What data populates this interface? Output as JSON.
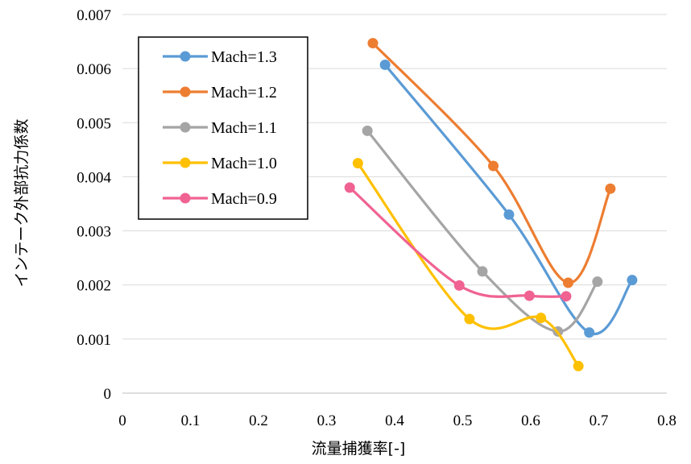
{
  "chart_data": {
    "type": "line",
    "xlabel": "流量捕獲率[-]",
    "ylabel": "インテーク外部抗力係数",
    "xlim": [
      0,
      0.8
    ],
    "ylim": [
      0,
      0.007
    ],
    "x_ticks": [
      "0",
      "0.1",
      "0.2",
      "0.3",
      "0.4",
      "0.5",
      "0.6",
      "0.7",
      "0.8"
    ],
    "y_ticks": [
      "0",
      "0.001",
      "0.002",
      "0.003",
      "0.004",
      "0.005",
      "0.006",
      "0.007"
    ],
    "grid": "horizontal",
    "legend_position": "top-left",
    "series": [
      {
        "name": "Mach=1.3",
        "color": "#5B9BD5",
        "points": [
          [
            0.386,
            0.00607
          ],
          [
            0.568,
            0.0033
          ],
          [
            0.686,
            0.00112
          ],
          [
            0.749,
            0.00209
          ]
        ]
      },
      {
        "name": "Mach=1.2",
        "color": "#ED7D31",
        "points": [
          [
            0.368,
            0.00647
          ],
          [
            0.545,
            0.0042
          ],
          [
            0.655,
            0.00204
          ],
          [
            0.717,
            0.00378
          ]
        ]
      },
      {
        "name": "Mach=1.1",
        "color": "#A5A5A5",
        "points": [
          [
            0.36,
            0.00485
          ],
          [
            0.529,
            0.00225
          ],
          [
            0.64,
            0.00114
          ],
          [
            0.698,
            0.00206
          ]
        ]
      },
      {
        "name": "Mach=1.0",
        "color": "#FFC000",
        "points": [
          [
            0.346,
            0.00425
          ],
          [
            0.51,
            0.00137
          ],
          [
            0.615,
            0.00139
          ],
          [
            0.67,
            0.0005
          ]
        ]
      },
      {
        "name": "Mach=0.9",
        "color": "#F06292",
        "points": [
          [
            0.334,
            0.0038
          ],
          [
            0.495,
            0.00199
          ],
          [
            0.598,
            0.0018
          ],
          [
            0.652,
            0.00179
          ]
        ]
      }
    ]
  }
}
